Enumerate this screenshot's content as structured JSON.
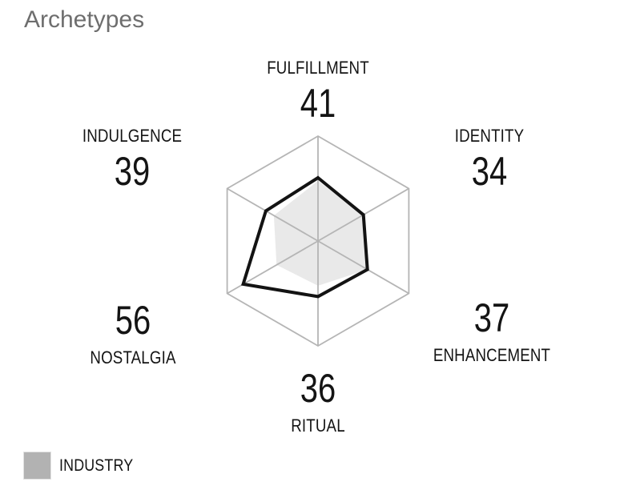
{
  "title": "Archetypes",
  "chart_data": {
    "type": "radar",
    "title": "Archetypes",
    "categories": [
      "FULFILLMENT",
      "IDENTITY",
      "ENHANCEMENT",
      "RITUAL",
      "NOSTALGIA",
      "INDULGENCE"
    ],
    "values": [
      41,
      34,
      37,
      36,
      56,
      39
    ],
    "industry_series": {
      "legend_label": "INDUSTRY",
      "estimated_values": [
        39,
        34,
        37,
        29,
        31,
        33
      ]
    },
    "axis_max_estimate": 68,
    "grid": "single-hexagon-ring-with-spokes",
    "legend_position": "bottom-left"
  },
  "legend": {
    "items": [
      {
        "label": "INDUSTRY",
        "swatch_color": "#b2b2b2"
      }
    ]
  },
  "colors": {
    "background": "#ffffff",
    "title_text": "#6e6e6e",
    "axis_text": "#141414",
    "grid_line": "#b5b5b5",
    "primary_outline": "#131313",
    "industry_fill": "#e9e9e9",
    "legend_swatch": "#b2b2b2"
  }
}
